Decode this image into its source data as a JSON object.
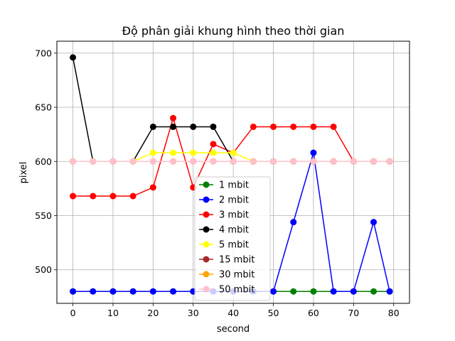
{
  "chart_data": {
    "type": "line",
    "title": "Độ phân giải khung hình theo thời gian",
    "xlabel": "second",
    "ylabel": "pixel",
    "xlim": [
      -4,
      83.95
    ],
    "ylim": [
      469,
      711
    ],
    "xticks": [
      0,
      10,
      20,
      30,
      40,
      50,
      60,
      70,
      80
    ],
    "yticks": [
      500,
      550,
      600,
      650,
      700
    ],
    "grid": true,
    "legend_position": "lower center",
    "x": [
      0,
      5,
      10,
      15,
      20,
      25,
      30,
      35,
      40,
      45,
      50,
      55,
      60,
      65,
      70,
      75,
      79
    ],
    "series": [
      {
        "name": "1 mbit",
        "color": "#008000",
        "values": [
          480,
          480,
          480,
          480,
          480,
          480,
          480,
          480,
          480,
          480,
          480,
          480,
          480,
          480,
          480,
          480,
          480
        ]
      },
      {
        "name": "2 mbit",
        "color": "#0000ff",
        "values": [
          480,
          480,
          480,
          480,
          480,
          480,
          480,
          480,
          480,
          480,
          480,
          544,
          608,
          480,
          480,
          544,
          480
        ]
      },
      {
        "name": "3 mbit",
        "color": "#ff0000",
        "values": [
          568,
          568,
          568,
          568,
          576,
          640,
          576,
          616,
          608,
          632,
          632,
          632,
          632,
          632,
          600,
          600,
          600
        ]
      },
      {
        "name": "4 mbit",
        "color": "#000000",
        "values": [
          696,
          600,
          600,
          600,
          632,
          632,
          632,
          632,
          600,
          600,
          600,
          600,
          600,
          600,
          600,
          600,
          600
        ]
      },
      {
        "name": "5 mbit",
        "color": "#ffff00",
        "values": [
          600,
          600,
          600,
          600,
          608,
          608,
          608,
          608,
          608,
          600,
          600,
          600,
          600,
          600,
          600,
          600,
          600
        ]
      },
      {
        "name": "15 mbit",
        "color": "#a52a2a",
        "values": [
          600,
          600,
          600,
          600,
          600,
          600,
          600,
          600,
          600,
          600,
          600,
          600,
          600,
          600,
          600,
          600,
          600
        ]
      },
      {
        "name": "30 mbit",
        "color": "#ffa500",
        "values": [
          600,
          600,
          600,
          600,
          600,
          600,
          600,
          600,
          600,
          600,
          600,
          600,
          600,
          600,
          600,
          600,
          600
        ]
      },
      {
        "name": "50 mbit",
        "color": "#ffc0cb",
        "values": [
          600,
          600,
          600,
          600,
          600,
          600,
          600,
          600,
          600,
          600,
          600,
          600,
          600,
          600,
          600,
          600,
          600
        ]
      }
    ]
  }
}
